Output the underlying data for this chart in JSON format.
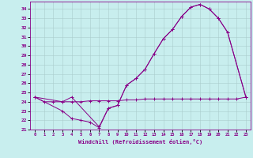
{
  "bg_color": "#c8eeee",
  "line_color": "#880088",
  "grid_color": "#aacccc",
  "xlabel": "Windchill (Refroidissement éolien,°C)",
  "xlim": [
    -0.5,
    23.5
  ],
  "ylim": [
    21,
    34.8
  ],
  "yticks": [
    21,
    22,
    23,
    24,
    25,
    26,
    27,
    28,
    29,
    30,
    31,
    32,
    33,
    34
  ],
  "xticks": [
    0,
    1,
    2,
    3,
    4,
    5,
    6,
    7,
    8,
    9,
    10,
    11,
    12,
    13,
    14,
    15,
    16,
    17,
    18,
    19,
    20,
    21,
    22,
    23
  ],
  "c1_x": [
    0,
    1,
    2,
    3,
    4,
    5,
    6,
    7,
    8,
    9,
    10,
    11,
    12,
    13,
    14,
    15,
    16,
    17,
    18,
    19,
    20,
    21,
    22,
    23
  ],
  "c1_y": [
    24.5,
    24.0,
    24.0,
    24.0,
    24.0,
    24.0,
    24.1,
    24.1,
    24.1,
    24.1,
    24.2,
    24.2,
    24.3,
    24.3,
    24.3,
    24.3,
    24.3,
    24.3,
    24.3,
    24.3,
    24.3,
    24.3,
    24.3,
    24.5
  ],
  "c2_x": [
    0,
    3,
    4,
    7,
    8,
    9,
    10,
    11,
    12,
    13,
    14,
    15,
    16,
    17,
    18,
    19,
    20,
    21,
    23
  ],
  "c2_y": [
    24.5,
    24.0,
    24.5,
    21.3,
    23.3,
    23.6,
    25.8,
    26.5,
    27.5,
    29.2,
    30.8,
    31.8,
    33.2,
    34.2,
    34.5,
    34.0,
    33.0,
    31.5,
    24.5
  ],
  "c3_x": [
    0,
    3,
    4,
    5,
    6,
    7,
    8,
    9,
    10,
    11,
    12,
    13,
    14,
    15,
    16,
    17,
    18,
    19,
    20,
    21,
    23
  ],
  "c3_y": [
    24.5,
    23.0,
    22.2,
    22.0,
    21.8,
    21.2,
    23.3,
    23.6,
    25.8,
    26.5,
    27.5,
    29.2,
    30.8,
    31.8,
    33.2,
    34.2,
    34.5,
    34.0,
    33.0,
    31.5,
    24.5
  ]
}
